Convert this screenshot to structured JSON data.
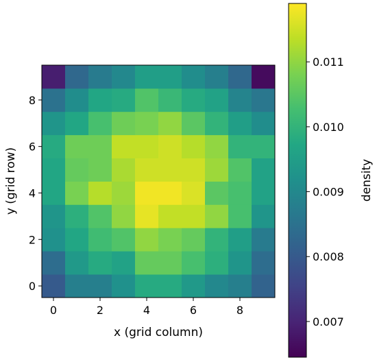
{
  "chart_data": {
    "type": "heatmap",
    "title": "",
    "xlabel": "x (grid column)",
    "ylabel": "y (grid row)",
    "colorbar_label": "density",
    "x_ticks": [
      0,
      2,
      4,
      6,
      8
    ],
    "y_ticks": [
      0,
      2,
      4,
      6,
      8
    ],
    "xlim": [
      -0.5,
      9.5
    ],
    "ylim": [
      -0.5,
      9.5
    ],
    "colormap": "viridis",
    "color_range": [
      0.00645,
      0.0119
    ],
    "colorbar_ticks": [
      {
        "value": 0.007,
        "label": "0.007"
      },
      {
        "value": 0.008,
        "label": "0.008"
      },
      {
        "value": 0.009,
        "label": "0.009"
      },
      {
        "value": 0.01,
        "label": "0.010"
      },
      {
        "value": 0.011,
        "label": "0.011"
      }
    ],
    "rows_note": "values[r] is grid row y=r; index within row is x column",
    "values": [
      [
        0.008,
        0.0088,
        0.0088,
        0.0092,
        0.0098,
        0.0098,
        0.0094,
        0.009,
        0.0088,
        0.0082
      ],
      [
        0.0084,
        0.0094,
        0.0098,
        0.0096,
        0.0106,
        0.0106,
        0.0103,
        0.0099,
        0.0093,
        0.0084
      ],
      [
        0.0092,
        0.0097,
        0.0102,
        0.0104,
        0.011,
        0.0108,
        0.0106,
        0.01,
        0.0095,
        0.0087
      ],
      [
        0.0093,
        0.0099,
        0.0104,
        0.011,
        0.0117,
        0.0114,
        0.0114,
        0.011,
        0.0103,
        0.0093
      ],
      [
        0.0097,
        0.0108,
        0.0113,
        0.0111,
        0.0118,
        0.0118,
        0.0116,
        0.0105,
        0.0103,
        0.0096
      ],
      [
        0.0097,
        0.0106,
        0.0107,
        0.0112,
        0.0115,
        0.0115,
        0.0115,
        0.0111,
        0.0104,
        0.0096
      ],
      [
        0.0098,
        0.0107,
        0.0107,
        0.0114,
        0.0114,
        0.0115,
        0.0113,
        0.011,
        0.01,
        0.01
      ],
      [
        0.0093,
        0.0097,
        0.0103,
        0.0107,
        0.0108,
        0.011,
        0.0105,
        0.01,
        0.0095,
        0.0091
      ],
      [
        0.0085,
        0.0091,
        0.0097,
        0.0098,
        0.0104,
        0.0101,
        0.0098,
        0.0096,
        0.0089,
        0.0086
      ],
      [
        0.0069,
        0.0083,
        0.0087,
        0.009,
        0.0095,
        0.0095,
        0.0091,
        0.0088,
        0.0083,
        0.0066
      ]
    ],
    "grid": false
  }
}
